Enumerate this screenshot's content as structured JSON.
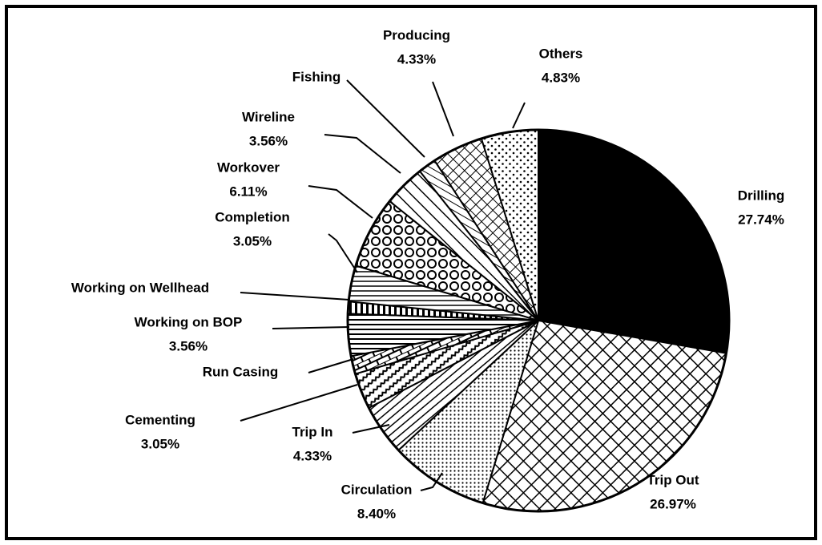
{
  "chart_data": {
    "type": "pie",
    "categories": [
      "Drilling",
      "Trip Out",
      "Circulation",
      "Trip In",
      "Cementing",
      "Run Casing",
      "Working on BOP",
      "Working on Wellhead",
      "Completion",
      "Workover",
      "Wireline",
      "Fishing",
      "Producing",
      "Others"
    ],
    "values": [
      27.74,
      26.97,
      8.4,
      4.33,
      3.05,
      1.53,
      3.56,
      1.02,
      3.05,
      6.11,
      3.56,
      1.52,
      4.33,
      4.83
    ],
    "value_labels": [
      "27.74%",
      "26.97%",
      "8.40%",
      "4.33%",
      "3.05%",
      null,
      "3.56%",
      null,
      "3.05%",
      "6.11%",
      "3.56%",
      null,
      "4.33%",
      "4.83%"
    ],
    "color": "#000000"
  }
}
